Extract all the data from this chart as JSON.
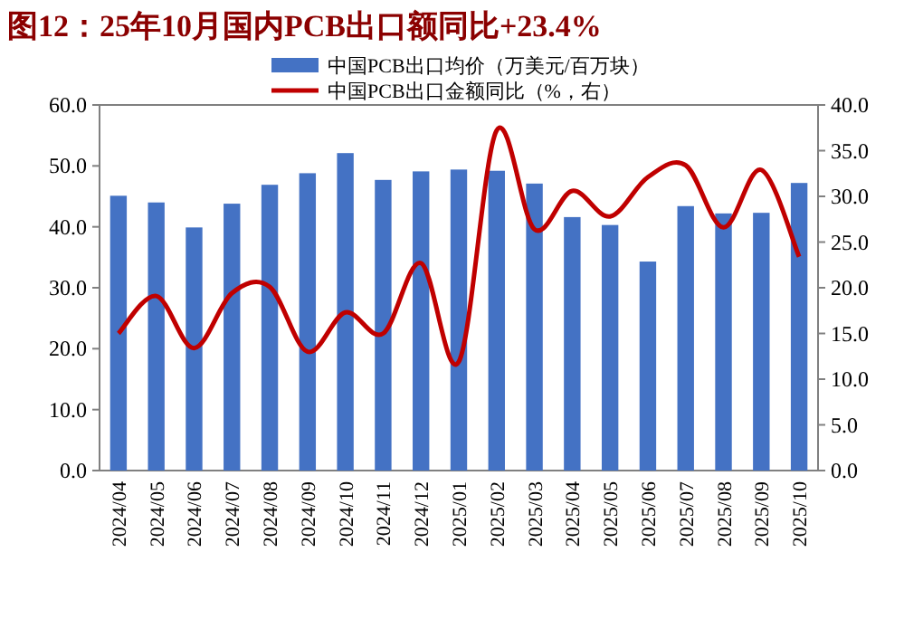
{
  "chart_data": {
    "type": "bar",
    "title": "图12：25年10月国内PCB出口额同比+23.4%",
    "categories": [
      "2024/04",
      "2024/05",
      "2024/06",
      "2024/07",
      "2024/08",
      "2024/09",
      "2024/10",
      "2024/11",
      "2024/12",
      "2025/01",
      "2025/02",
      "2025/03",
      "2025/04",
      "2025/05",
      "2025/06",
      "2025/07",
      "2025/08",
      "2025/09",
      "2025/10"
    ],
    "series": [
      {
        "name": "中国PCB出口均价（万美元/百万块）",
        "color": "#4472c4",
        "values": [
          45.1,
          44.0,
          39.9,
          43.8,
          46.9,
          48.8,
          52.1,
          47.7,
          49.1,
          49.4,
          49.2,
          47.1,
          41.6,
          40.3,
          34.3,
          43.4,
          42.2,
          42.3,
          47.2
        ]
      },
      {
        "name": "中国PCB出口金额同比（%，右）",
        "type": "line",
        "axis": "y2",
        "color": "#c00000",
        "values": [
          15.0,
          19.1,
          13.4,
          19.4,
          20.1,
          13.0,
          17.3,
          15.0,
          22.7,
          11.9,
          37.2,
          26.4,
          30.6,
          27.8,
          32.1,
          33.4,
          26.6,
          32.9,
          23.4
        ]
      }
    ],
    "ylim": [
      0,
      60
    ],
    "yticks": [
      {
        "value": 0,
        "label": "0.0"
      },
      {
        "value": 10,
        "label": "10.0"
      },
      {
        "value": 20,
        "label": "20.0"
      },
      {
        "value": 30,
        "label": "30.0"
      },
      {
        "value": 40,
        "label": "40.0"
      },
      {
        "value": 50,
        "label": "50.0"
      },
      {
        "value": 60,
        "label": "60.0"
      }
    ],
    "y2lim": [
      0,
      40
    ],
    "y2ticks": [
      {
        "value": 0,
        "label": "0.0"
      },
      {
        "value": 5,
        "label": "5.0"
      },
      {
        "value": 10,
        "label": "10.0"
      },
      {
        "value": 15,
        "label": "15.0"
      },
      {
        "value": 20,
        "label": "20.0"
      },
      {
        "value": 25,
        "label": "25.0"
      },
      {
        "value": 30,
        "label": "30.0"
      },
      {
        "value": 35,
        "label": "35.0"
      },
      {
        "value": 40,
        "label": "40.0"
      }
    ],
    "legend": "top",
    "marker": "none",
    "line_style": "solid"
  }
}
